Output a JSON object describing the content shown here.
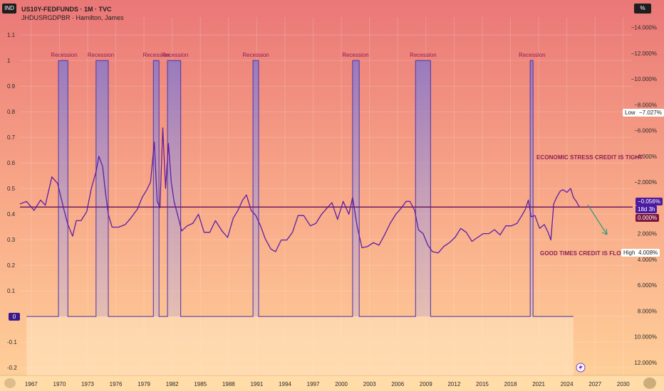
{
  "header": {
    "symbol": "US10Y-FEDFUNDS · 1M · TVC",
    "indicator": "JHDUSRGDPBR · Hamilton, James",
    "left_badge": "IND",
    "right_badge": "%"
  },
  "annotations": {
    "recession_label": "Recession",
    "stress_text": "ECONOMIC STRESS CREDIT IS TIGHT",
    "good_text": "GOOD TIMES CREDIT IS FLOWING"
  },
  "tags": {
    "low_label": "Low",
    "low_value": "−7.027%",
    "current_value": "−0.056%",
    "countdown": "18d 3h",
    "zero_value": "0.000%",
    "high_label": "High",
    "high_value": "4.008%",
    "left_zero": "0"
  },
  "colors": {
    "spread_line": "#5a1fa8",
    "recession_fill": "#8a78c8",
    "recession_label": "#8b1e55",
    "horizontal_line": "#6e1b5e",
    "arrow": "#2e9a7e",
    "bg_top": "#ea7777",
    "bg_bottom": "#ffd29a"
  },
  "chart_data": [
    {
      "type": "area",
      "series": [
        {
          "name": "JHDUSRGDPBR",
          "points": [
            [
              1966.5,
              0
            ],
            [
              1969.9,
              0
            ],
            [
              1969.9,
              1
            ],
            [
              1970.9,
              1
            ],
            [
              1970.9,
              0
            ],
            [
              1973.9,
              0
            ],
            [
              1973.9,
              1
            ],
            [
              1975.2,
              1
            ],
            [
              1975.2,
              0
            ],
            [
              1980.0,
              0
            ],
            [
              1980.0,
              1
            ],
            [
              1980.6,
              1
            ],
            [
              1980.6,
              0
            ],
            [
              1981.5,
              0
            ],
            [
              1981.5,
              1
            ],
            [
              1982.9,
              1
            ],
            [
              1982.9,
              0
            ],
            [
              1990.6,
              0
            ],
            [
              1990.6,
              1
            ],
            [
              1991.2,
              1
            ],
            [
              1991.2,
              0
            ],
            [
              2001.2,
              0
            ],
            [
              2001.2,
              1
            ],
            [
              2001.9,
              1
            ],
            [
              2001.9,
              0
            ],
            [
              2007.9,
              0
            ],
            [
              2007.9,
              1
            ],
            [
              2009.5,
              1
            ],
            [
              2009.5,
              0
            ],
            [
              2020.1,
              0
            ],
            [
              2020.1,
              1
            ],
            [
              2020.4,
              1
            ],
            [
              2020.4,
              0
            ],
            [
              2024.7,
              0
            ]
          ]
        }
      ],
      "ylim": [
        -0.23,
        1.17
      ],
      "y_ticks": [
        -0.2,
        -0.1,
        0,
        0.1,
        0.2,
        0.3,
        0.4,
        0.5,
        0.6,
        0.7,
        0.8,
        0.9,
        1,
        1.1
      ],
      "y_tick_labels": [
        "-0.2",
        "-0.1",
        "0",
        "0.1",
        "0.2",
        "0.3",
        "0.4",
        "0.5",
        "0.6",
        "0.7",
        "0.8",
        "0.9",
        "1",
        "1.1"
      ],
      "recession_labels": [
        {
          "x": 1970.5,
          "text": "Recession"
        },
        {
          "x": 1974.4,
          "text": "Recession"
        },
        {
          "x": 1980.3,
          "text": "Recession"
        },
        {
          "x": 1982.3,
          "text": "Recession"
        },
        {
          "x": 1990.9,
          "text": "Recession"
        },
        {
          "x": 2001.5,
          "text": "Recession"
        },
        {
          "x": 2008.7,
          "text": "Recession"
        },
        {
          "x": 2020.3,
          "text": "Recession"
        }
      ]
    },
    {
      "type": "line",
      "series": [
        {
          "name": "US10Y-FEDFUNDS",
          "points": [
            [
              1965.8,
              -0.3
            ],
            [
              1966.5,
              -0.5
            ],
            [
              1967.3,
              0.2
            ],
            [
              1968.0,
              -0.6
            ],
            [
              1968.5,
              -0.2
            ],
            [
              1969.2,
              -2.4
            ],
            [
              1969.8,
              -1.9
            ],
            [
              1970.5,
              0.2
            ],
            [
              1970.9,
              1.3
            ],
            [
              1971.4,
              2.2
            ],
            [
              1971.8,
              1.0
            ],
            [
              1972.3,
              1.0
            ],
            [
              1972.9,
              0.3
            ],
            [
              1973.4,
              -1.5
            ],
            [
              1973.9,
              -2.8
            ],
            [
              1974.2,
              -4.0
            ],
            [
              1974.6,
              -3.2
            ],
            [
              1974.9,
              -1.2
            ],
            [
              1975.2,
              0.5
            ],
            [
              1975.6,
              1.5
            ],
            [
              1976.3,
              1.5
            ],
            [
              1977.0,
              1.3
            ],
            [
              1977.6,
              0.8
            ],
            [
              1978.3,
              0.1
            ],
            [
              1978.8,
              -0.8
            ],
            [
              1979.3,
              -1.4
            ],
            [
              1979.7,
              -2.0
            ],
            [
              1980.1,
              -5.1
            ],
            [
              1980.4,
              -0.5
            ],
            [
              1980.7,
              0.0
            ],
            [
              1981.0,
              -6.2
            ],
            [
              1981.3,
              -1.5
            ],
            [
              1981.6,
              -5.0
            ],
            [
              1981.9,
              -2.0
            ],
            [
              1982.2,
              -0.5
            ],
            [
              1982.6,
              0.6
            ],
            [
              1983.0,
              1.8
            ],
            [
              1983.6,
              1.4
            ],
            [
              1984.2,
              1.2
            ],
            [
              1984.8,
              0.5
            ],
            [
              1985.4,
              1.9
            ],
            [
              1986.0,
              1.9
            ],
            [
              1986.6,
              1.0
            ],
            [
              1987.3,
              1.8
            ],
            [
              1987.9,
              2.3
            ],
            [
              1988.5,
              0.8
            ],
            [
              1989.0,
              0.2
            ],
            [
              1989.5,
              -0.6
            ],
            [
              1989.9,
              -1.0
            ],
            [
              1990.4,
              0.2
            ],
            [
              1990.9,
              0.6
            ],
            [
              1991.4,
              1.4
            ],
            [
              1991.9,
              2.4
            ],
            [
              1992.5,
              3.2
            ],
            [
              1993.0,
              3.4
            ],
            [
              1993.6,
              2.5
            ],
            [
              1994.2,
              2.5
            ],
            [
              1994.8,
              1.9
            ],
            [
              1995.4,
              0.6
            ],
            [
              1996.0,
              0.6
            ],
            [
              1996.7,
              1.4
            ],
            [
              1997.3,
              1.2
            ],
            [
              1997.9,
              0.5
            ],
            [
              1998.5,
              0.0
            ],
            [
              1999.0,
              -0.4
            ],
            [
              1999.6,
              0.9
            ],
            [
              2000.2,
              -0.5
            ],
            [
              2000.8,
              0.5
            ],
            [
              2001.2,
              -0.8
            ],
            [
              2001.7,
              1.5
            ],
            [
              2002.2,
              3.1
            ],
            [
              2002.8,
              3.0
            ],
            [
              2003.4,
              2.7
            ],
            [
              2004.0,
              2.9
            ],
            [
              2004.6,
              2.1
            ],
            [
              2005.2,
              1.2
            ],
            [
              2005.8,
              0.5
            ],
            [
              2006.4,
              0.0
            ],
            [
              2006.9,
              -0.5
            ],
            [
              2007.3,
              -0.5
            ],
            [
              2007.8,
              0.2
            ],
            [
              2008.2,
              1.7
            ],
            [
              2008.7,
              2.0
            ],
            [
              2009.2,
              2.9
            ],
            [
              2009.7,
              3.4
            ],
            [
              2010.3,
              3.5
            ],
            [
              2010.9,
              3.0
            ],
            [
              2011.5,
              2.7
            ],
            [
              2012.1,
              2.3
            ],
            [
              2012.7,
              1.6
            ],
            [
              2013.3,
              1.9
            ],
            [
              2013.9,
              2.6
            ],
            [
              2014.5,
              2.3
            ],
            [
              2015.1,
              2.0
            ],
            [
              2015.7,
              2.0
            ],
            [
              2016.3,
              1.7
            ],
            [
              2016.9,
              2.1
            ],
            [
              2017.5,
              1.4
            ],
            [
              2018.1,
              1.4
            ],
            [
              2018.7,
              1.2
            ],
            [
              2019.2,
              0.6
            ],
            [
              2019.6,
              0.1
            ],
            [
              2019.9,
              -0.6
            ],
            [
              2020.2,
              0.7
            ],
            [
              2020.6,
              0.6
            ],
            [
              2021.1,
              1.6
            ],
            [
              2021.6,
              1.3
            ],
            [
              2022.0,
              1.9
            ],
            [
              2022.3,
              2.5
            ],
            [
              2022.6,
              -0.3
            ],
            [
              2022.9,
              -0.8
            ],
            [
              2023.3,
              -1.3
            ],
            [
              2023.6,
              -1.4
            ],
            [
              2024.0,
              -1.2
            ],
            [
              2024.4,
              -1.5
            ],
            [
              2024.7,
              -0.8
            ],
            [
              2025.0,
              -0.5
            ],
            [
              2025.3,
              -0.1
            ]
          ]
        }
      ],
      "ylim": [
        -14.8,
        13.0
      ],
      "inverted": true,
      "y_ticks": [
        -14,
        -12,
        -10,
        -8,
        -6,
        -4,
        -2,
        0,
        2,
        4,
        6,
        8,
        10,
        12
      ],
      "y_tick_labels": [
        "−14.000%",
        "−12.000%",
        "−10.000%",
        "−8.000%",
        "−6.000%",
        "−4.000%",
        "−2.000%",
        "0.000%",
        "2.000%",
        "4.000%",
        "6.000%",
        "8.000%",
        "10.000%",
        "12.000%"
      ],
      "current_value": -0.056
    }
  ],
  "x_axis": {
    "xlim": [
      1965.8,
      2031.0
    ],
    "ticks": [
      1967,
      1970,
      1973,
      1976,
      1979,
      1982,
      1985,
      1988,
      1991,
      1994,
      1997,
      2000,
      2003,
      2006,
      2009,
      2012,
      2015,
      2018,
      2021,
      2024,
      2027,
      2030
    ],
    "labels": [
      "1967",
      "1970",
      "1973",
      "1976",
      "1979",
      "1982",
      "1985",
      "1988",
      "1991",
      "1994",
      "1997",
      "2000",
      "2003",
      "2006",
      "2009",
      "2012",
      "2015",
      "2018",
      "2021",
      "2024",
      "2027",
      "2030"
    ]
  }
}
